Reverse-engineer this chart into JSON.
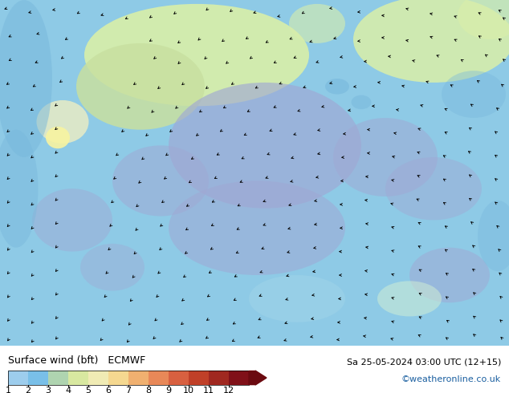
{
  "title_left": "Surface wind (bft)   ECMWF",
  "title_right": "Sa 25-05-2024 03:00 UTC (12+15)",
  "credit": "©weatheronline.co.uk",
  "colorbar_values": [
    1,
    2,
    3,
    4,
    5,
    6,
    7,
    8,
    9,
    10,
    11,
    12
  ],
  "colorbar_colors": [
    "#9dcded",
    "#79bfe8",
    "#afd4b0",
    "#d8e8a0",
    "#f0ebb4",
    "#f5d890",
    "#f0b070",
    "#e88858",
    "#d86040",
    "#c04028",
    "#a02820",
    "#801018"
  ],
  "colorbar_arrow_color": "#6b0a10",
  "font_color_left": "#000000",
  "font_color_right": "#000000",
  "font_color_credit": "#1a5fa0",
  "font_size_title": 9,
  "font_size_tick": 8,
  "font_size_credit": 8,
  "fig_width": 6.34,
  "fig_height": 4.9,
  "dpi": 100,
  "map_bg": "#7dc8e8",
  "color_bft1": "#9dcded",
  "color_bft2": "#79bfe8",
  "color_bft3": "#afd4b0",
  "color_bft4": "#d8e8a0",
  "color_bft5": "#f0ebb4",
  "color_green_light": "#c8e0a0",
  "color_green_pale": "#d8eeaa",
  "color_blue_light": "#a0d4e8",
  "color_blue_medium": "#78b8dc",
  "color_blue_lavender": "#a0a8d4",
  "color_blue_purple": "#8898c8",
  "color_blue_sky": "#8ecae6",
  "color_yellow_light": "#f5f0c0",
  "color_yellow_green": "#e8f0a0"
}
